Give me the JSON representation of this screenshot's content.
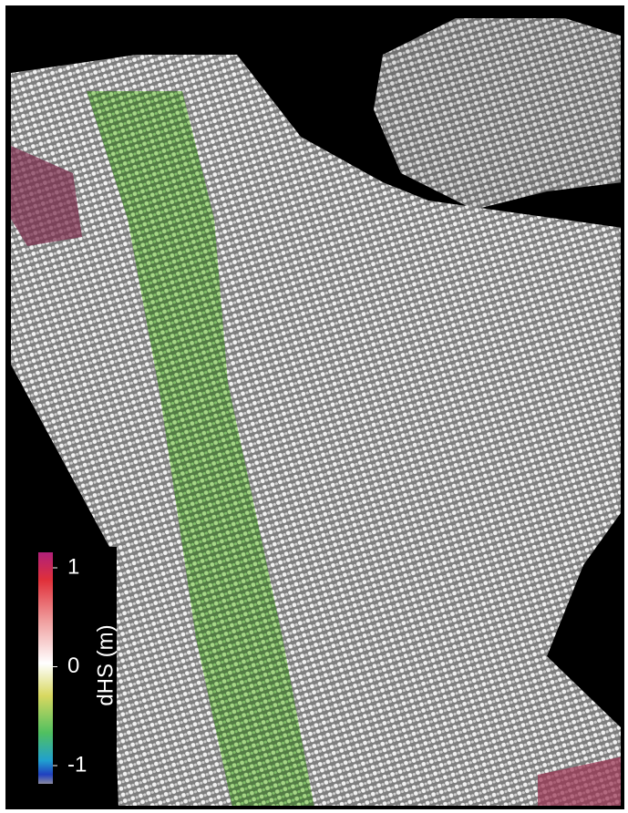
{
  "colorbar": {
    "label": "dHS (m)",
    "ticks": [
      1,
      0,
      -1
    ]
  }
}
